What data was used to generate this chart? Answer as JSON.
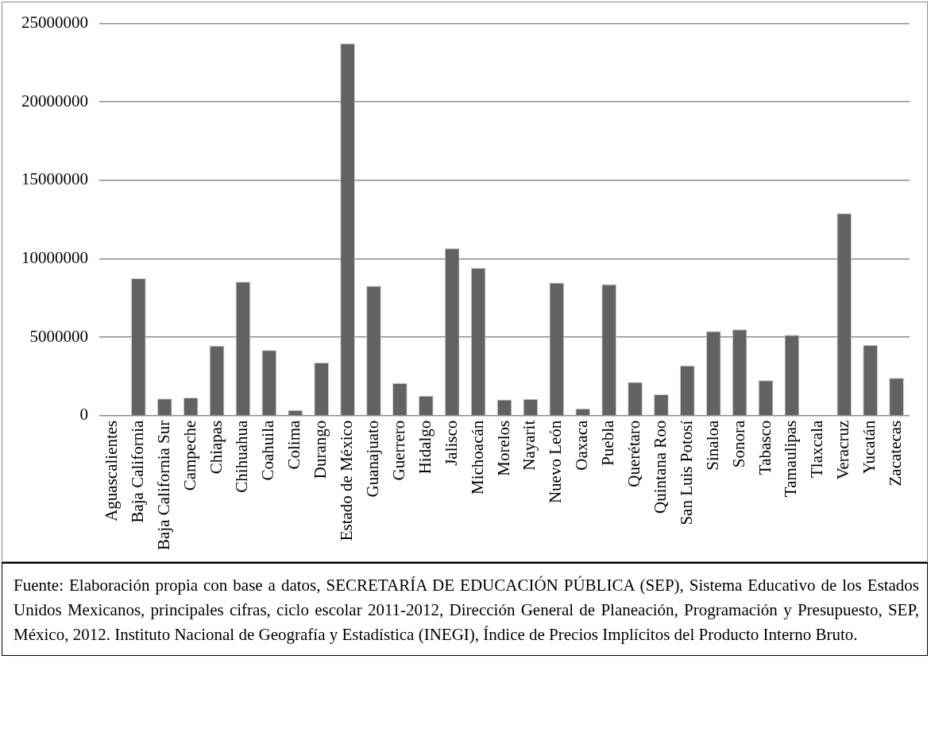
{
  "chart_data": {
    "type": "bar",
    "categories": [
      "Aguascalientes",
      "Baja California",
      "Baja California Sur",
      "Campeche",
      "Chiapas",
      "Chihuahua",
      "Coahuila",
      "Colima",
      "Durango",
      "Estado de México",
      "Guanajuato",
      "Guerrero",
      "Hidalgo",
      "Jalisco",
      "Michoacán",
      "Morelos",
      "Nayarit",
      "Nuevo León",
      "Oaxaca",
      "Puebla",
      "Querétaro",
      "Quintana Roo",
      "San Luis Potosí",
      "Sinaloa",
      "Sonora",
      "Tabasco",
      "Tamaulipas",
      "Tlaxcala",
      "Veracruz",
      "Yucatán",
      "Zacatecas"
    ],
    "values": [
      0,
      8760000,
      1090000,
      1150000,
      4460000,
      8540000,
      4180000,
      350000,
      3380000,
      23740000,
      8270000,
      2080000,
      1260000,
      10670000,
      9410000,
      1020000,
      1060000,
      8480000,
      450000,
      8370000,
      2140000,
      1360000,
      3190000,
      5380000,
      5500000,
      2250000,
      5150000,
      0,
      12900000,
      4500000,
      2400000
    ],
    "color": "#626262",
    "ylim": [
      0,
      25000000
    ],
    "yticks": [
      0,
      5000000,
      10000000,
      15000000,
      20000000,
      25000000
    ],
    "grid": "y",
    "legend": false,
    "annotations": [
      "Fuente: Elaboración propia con base a datos, SECRETARÍA DE EDUCACIÓN PÚBLICA (SEP), Sistema Educativo de los Estados Unidos Mexicanos, principales cifras, ciclo escolar 2011-2012, Dirección General de Planeación, Programación y Presupuesto, SEP, México, 2012. Instituto Nacional de Geografía y Estadística (INEGI), Índice de Precios Implícitos del Producto Interno Bruto."
    ]
  }
}
